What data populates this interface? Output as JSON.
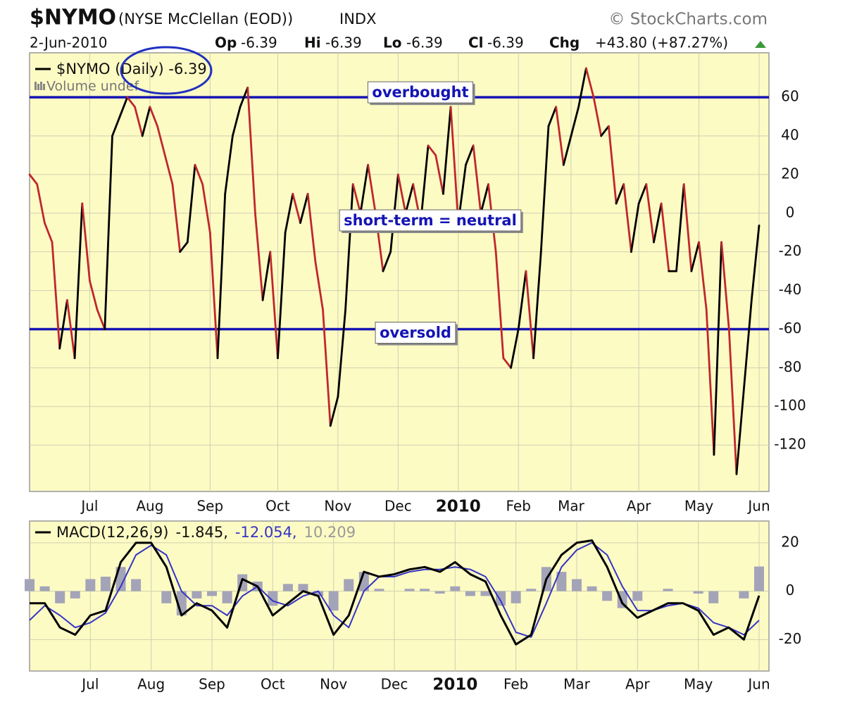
{
  "header": {
    "symbol": "$NYMO",
    "name": "(NYSE McClellan (EOD))",
    "exchange": "INDX",
    "source": "© StockCharts.com",
    "date": "2-Jun-2010",
    "op_label": "Op",
    "op": -6.39,
    "hi_label": "Hi",
    "hi": -6.39,
    "lo_label": "Lo",
    "lo": -6.39,
    "cl_label": "Cl",
    "cl": -6.39,
    "chg_label": "Chg",
    "chg": "+43.80 (+87.27%)"
  },
  "chart_data": [
    {
      "type": "line",
      "legend": "$NYMO (Daily) -6.39",
      "volume_legend": "Volume undef",
      "up_color": "#000000",
      "down_color": "#c0272d",
      "categories": [
        null,
        null,
        null,
        null,
        null,
        null,
        null,
        null,
        "Jul",
        null,
        null,
        null,
        null,
        null,
        null,
        null,
        "Aug",
        null,
        null,
        null,
        null,
        null,
        null,
        null,
        "Sep",
        null,
        null,
        null,
        null,
        null,
        null,
        null,
        null,
        "Oct",
        null,
        null,
        null,
        null,
        null,
        null,
        null,
        "Nov",
        null,
        null,
        null,
        null,
        null,
        null,
        null,
        "Dec",
        null,
        null,
        null,
        null,
        null,
        null,
        null,
        "2010",
        null,
        null,
        null,
        null,
        null,
        null,
        null,
        "Feb",
        null,
        null,
        null,
        null,
        null,
        null,
        "Mar",
        null,
        null,
        null,
        null,
        null,
        null,
        null,
        null,
        "Apr",
        null,
        null,
        null,
        null,
        null,
        null,
        null,
        "May",
        null,
        null,
        null,
        null,
        null,
        null,
        null,
        "Jun"
      ],
      "values": [
        20,
        15,
        -5,
        -15,
        -70,
        -45,
        -75,
        5,
        -35,
        -50,
        -60,
        40,
        50,
        60,
        55,
        40,
        55,
        45,
        30,
        15,
        -20,
        -15,
        25,
        15,
        -10,
        -75,
        10,
        40,
        55,
        65,
        0,
        -45,
        -20,
        -75,
        -10,
        10,
        -5,
        10,
        -25,
        -50,
        -110,
        -95,
        -50,
        15,
        0,
        25,
        0,
        -30,
        -20,
        20,
        0,
        15,
        -5,
        35,
        30,
        10,
        55,
        -5,
        25,
        35,
        0,
        15,
        -20,
        -75,
        -80,
        -60,
        -30,
        -75,
        -20,
        45,
        55,
        25,
        40,
        55,
        75,
        60,
        40,
        45,
        5,
        15,
        -20,
        5,
        15,
        -15,
        5,
        -30,
        -30,
        15,
        -30,
        -15,
        -50,
        -125,
        -15,
        -60,
        -135,
        -90,
        -45,
        -6.39
      ],
      "ylim": [
        -144,
        83
      ],
      "yticks": [
        60,
        40,
        20,
        0,
        -20,
        -40,
        -60,
        -80,
        -100,
        -120
      ],
      "grid": true,
      "reference_lines": [
        {
          "value": 60,
          "label": "overbought"
        },
        {
          "value": -60,
          "label": "oversold"
        }
      ],
      "annotation": "short-term = neutral",
      "reference_color": "#1414b4"
    },
    {
      "type": "macd",
      "legend": {
        "label": "MACD(12,26,9)",
        "macd": "-1.845,",
        "signal": "-12.054,",
        "histogram": "10.209"
      },
      "categories": [
        null,
        null,
        null,
        null,
        "Jul",
        null,
        null,
        null,
        "Aug",
        null,
        null,
        null,
        "Sep",
        null,
        null,
        null,
        "Oct",
        null,
        null,
        null,
        "Nov",
        null,
        null,
        null,
        "Dec",
        null,
        null,
        null,
        "2010",
        null,
        null,
        null,
        "Feb",
        null,
        null,
        null,
        "Mar",
        null,
        null,
        null,
        "Apr",
        null,
        null,
        null,
        "May",
        null,
        null,
        null,
        "Jun"
      ],
      "series": [
        {
          "name": "MACD",
          "color": "#000000",
          "values": [
            -5,
            -5,
            -15,
            -18,
            -10,
            -8,
            12,
            20,
            20,
            10,
            -10,
            -5,
            -8,
            -15,
            5,
            2,
            -10,
            -5,
            0,
            -2,
            -18,
            -10,
            8,
            6,
            7,
            9,
            10,
            8,
            12,
            7,
            4,
            -10,
            -22,
            -18,
            5,
            15,
            20,
            21,
            10,
            -5,
            -11,
            -8,
            -5,
            -5,
            -8,
            -18,
            -15,
            -20,
            -1.845
          ]
        },
        {
          "name": "Signal",
          "color": "#3434c4",
          "values": [
            -12,
            -6,
            -10,
            -15,
            -13,
            -9,
            2,
            15,
            19,
            15,
            0,
            -6,
            -6,
            -10,
            -2,
            2,
            -4,
            -6,
            -2,
            0,
            -10,
            -15,
            0,
            6,
            6,
            8,
            9,
            9,
            10,
            9,
            6,
            -4,
            -17,
            -19,
            -5,
            10,
            17,
            20,
            15,
            2,
            -8,
            -8,
            -6,
            -5,
            -7,
            -13,
            -15,
            -18,
            -12.054
          ]
        },
        {
          "name": "Histogram",
          "color": "#a4a4b8",
          "values": [
            5,
            2,
            -5,
            -3,
            5,
            6,
            10,
            5,
            0,
            -5,
            -10,
            -3,
            -2,
            -5,
            7,
            4,
            -6,
            3,
            3,
            -2,
            -8,
            5,
            8,
            1,
            0,
            1,
            1,
            -1,
            2,
            -2,
            -2,
            -6,
            -5,
            1,
            10,
            8,
            5,
            2,
            -4,
            -7,
            -4,
            0,
            1,
            0,
            -1,
            -5,
            0,
            -3,
            10.209
          ]
        }
      ],
      "ylim": [
        -33,
        29
      ],
      "yticks": [
        20,
        0,
        -20
      ],
      "grid": true
    }
  ]
}
